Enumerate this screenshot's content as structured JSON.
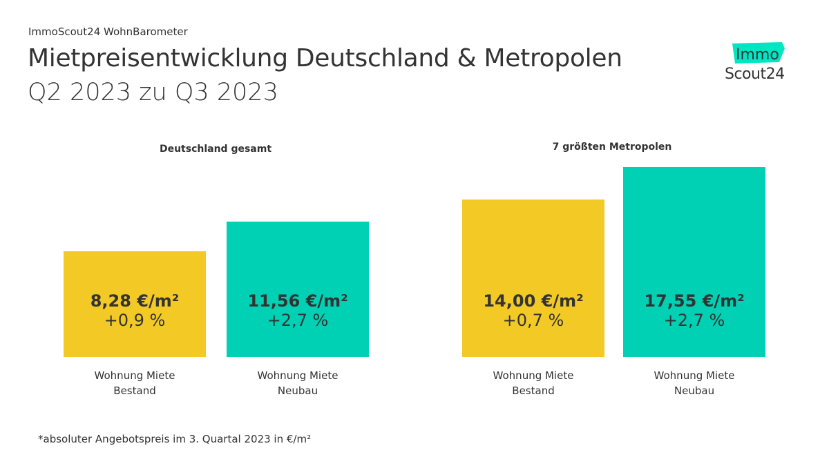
{
  "header": {
    "kicker": "ImmoScout24 WohnBarometer",
    "title": "Mietpreisentwicklung Deutschland & Metropolen",
    "subtitle": "Q2 2023 zu Q3 2023"
  },
  "logo": {
    "top": "Immo",
    "bottom": "Scout24",
    "color": "#00E6C3"
  },
  "chart_data": [
    {
      "type": "bar",
      "title": "Deutschland gesamt",
      "categories": [
        "Wohnung Miete Bestand",
        "Wohnung Miete Neubau"
      ],
      "cat_lines": [
        [
          "Wohnung Miete",
          "Bestand"
        ],
        [
          "Wohnung Miete",
          "Neubau"
        ]
      ],
      "values": [
        8.28,
        11.56
      ],
      "value_labels": [
        "8,28 €/m²",
        "11,56 €/m²"
      ],
      "changes": [
        "+0,9 %",
        "+2,7 %"
      ],
      "colors": [
        "#F2C925",
        "#00D0B4"
      ]
    },
    {
      "type": "bar",
      "title": "7 größten Metropolen",
      "categories": [
        "Wohnung Miete Bestand",
        "Wohnung Miete Neubau"
      ],
      "cat_lines": [
        [
          "Wohnung Miete",
          "Bestand"
        ],
        [
          "Wohnung Miete",
          "Neubau"
        ]
      ],
      "values": [
        14.0,
        17.55
      ],
      "value_labels": [
        "14,00 €/m²",
        "17,55 €/m²"
      ],
      "changes": [
        "+0,7 %",
        "+2,7 %"
      ],
      "colors": [
        "#F2C925",
        "#00D0B4"
      ]
    }
  ],
  "footnote": "*absoluter Angebotspreis im 3. Quartal 2023 in €/m²"
}
